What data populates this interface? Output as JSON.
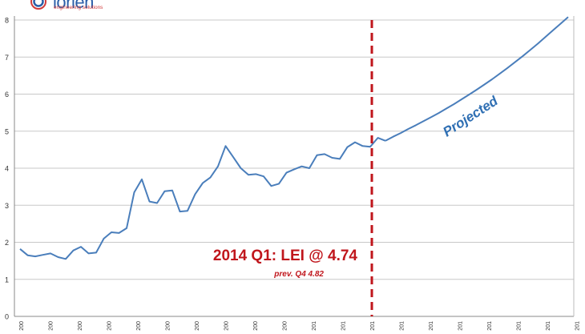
{
  "logo": {
    "name": "iorien",
    "tagline": "engineering solutions"
  },
  "chart_data": {
    "type": "line",
    "title": "",
    "xlabel": "",
    "ylabel": "",
    "ylim": [
      0,
      8
    ],
    "yticks": [
      0,
      1,
      2,
      3,
      4,
      5,
      6,
      7,
      8
    ],
    "grid": true,
    "xtick_labels": [
      "200",
      "200",
      "200",
      "200",
      "200",
      "200",
      "200",
      "200",
      "200",
      "200",
      "201",
      "201",
      "201",
      "201",
      "201",
      "201",
      "201",
      "201",
      "201",
      "201",
      "202",
      "202"
    ],
    "series": [
      {
        "role": "historical",
        "color": "#4a7ebb",
        "values": [
          1.82,
          1.65,
          1.62,
          1.66,
          1.7,
          1.6,
          1.55,
          1.78,
          1.88,
          1.7,
          1.72,
          2.1,
          2.27,
          2.25,
          2.38,
          3.35,
          3.7,
          3.1,
          3.06,
          3.38,
          3.4,
          2.83,
          2.85,
          3.3,
          3.6,
          3.75,
          4.05,
          4.6,
          4.3,
          4.0,
          3.82,
          3.84,
          3.78,
          3.52,
          3.58,
          3.88,
          3.97,
          4.05,
          4.0,
          4.35,
          4.38,
          4.28,
          4.25,
          4.57,
          4.7,
          4.6,
          4.58,
          4.82,
          4.74
        ]
      },
      {
        "role": "projected",
        "color": "#4a7ebb",
        "values": [
          4.74,
          4.85,
          4.95,
          5.06,
          5.16,
          5.27,
          5.38,
          5.49,
          5.61,
          5.73,
          5.86,
          5.99,
          6.12,
          6.26,
          6.4,
          6.55,
          6.7,
          6.86,
          7.02,
          7.19,
          7.36,
          7.54,
          7.72,
          7.9,
          8.08
        ]
      }
    ],
    "annotations": {
      "projected_label": "Projected",
      "main_label": "2014 Q1: LEI @ 4.74",
      "sub_label": "prev. Q4 4.82",
      "main_color": "#c0161c",
      "marker_color": "#c0161c"
    }
  }
}
